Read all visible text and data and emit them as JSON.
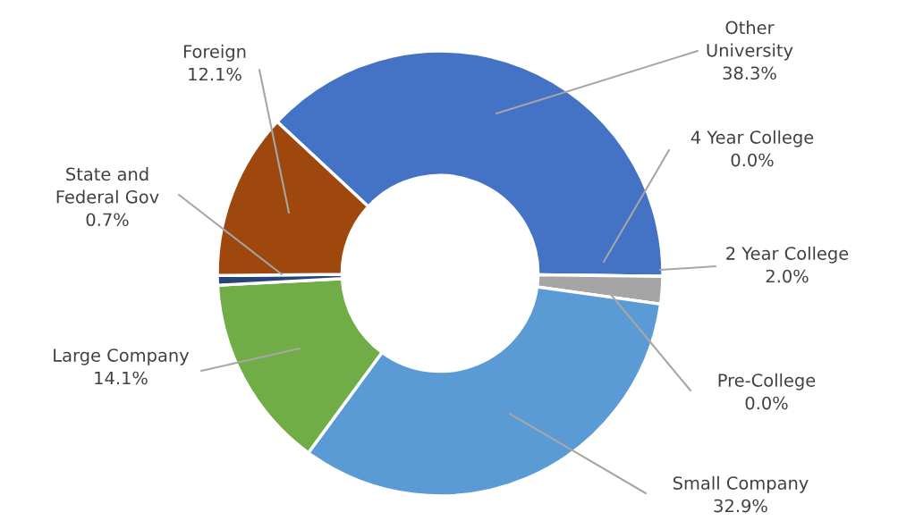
{
  "chart_data": {
    "type": "donut",
    "categories": [
      "Other\nUniversity",
      "4 Year College",
      "2 Year College",
      "Pre-College",
      "Small Company",
      "Large Company",
      "State and\nFederal Gov",
      "Foreign"
    ],
    "values": [
      38.3,
      0.0,
      2.0,
      0.0,
      32.9,
      14.1,
      0.7,
      12.1
    ],
    "value_labels": [
      "38.3%",
      "0.0%",
      "2.0%",
      "0.0%",
      "32.9%",
      "14.1%",
      "0.7%",
      "12.1%"
    ],
    "colors": [
      "#4472c4",
      "#ed7d31",
      "#a5a5a5",
      "#ffc000",
      "#5b9bd5",
      "#70ad47",
      "#264478",
      "#9e480e"
    ],
    "legend": false
  }
}
